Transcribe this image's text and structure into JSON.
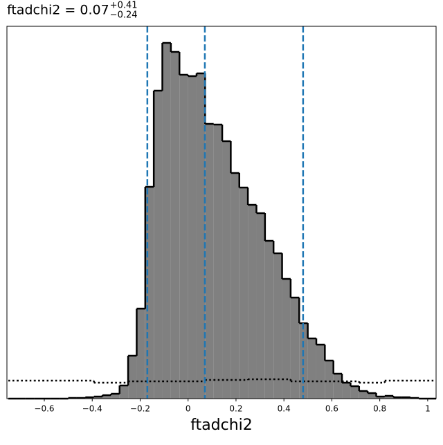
{
  "chart_data": {
    "type": "histogram",
    "title": "ftadchi2 = 0.07",
    "upper_error": "+0.41",
    "lower_error": "−0.24",
    "xlabel": "ftadchi2",
    "bins": [
      -0.75,
      -0.7143,
      -0.6786,
      -0.6429,
      -0.6072,
      -0.5715,
      -0.5358,
      -0.5001,
      -0.4644,
      -0.4287,
      -0.393,
      -0.3573,
      -0.3216,
      -0.2859,
      -0.2502,
      -0.2145,
      -0.1788,
      -0.1431,
      -0.1074,
      -0.0717,
      -0.036,
      -0.0003,
      0.0354,
      0.0711,
      0.1068,
      0.1425,
      0.1782,
      0.2139,
      0.2496,
      0.2853,
      0.321,
      0.3567,
      0.3924,
      0.4281,
      0.4638,
      0.4995,
      0.5352,
      0.5709,
      0.6066,
      0.6423,
      0.678,
      0.7137,
      0.7494,
      0.7851,
      0.8208,
      0.8565,
      0.8922,
      0.9279,
      0.9636,
      0.9993,
      1.035
    ],
    "values": [
      0,
      0,
      0,
      0,
      0,
      0,
      0,
      1,
      1,
      2,
      3,
      5,
      7,
      19,
      62,
      130,
      306,
      445,
      514,
      501,
      468,
      466,
      470,
      397,
      396,
      372,
      326,
      305,
      280,
      268,
      228,
      210,
      173,
      146,
      109,
      87,
      78,
      55,
      36,
      23,
      18,
      11,
      8,
      3,
      4,
      2,
      2,
      1,
      0,
      0
    ],
    "prior_values": [
      26,
      26,
      26,
      26,
      26,
      26,
      26,
      26,
      26,
      26,
      23,
      23,
      23,
      23,
      25,
      25,
      25,
      25,
      25,
      25,
      25,
      25,
      25,
      27,
      27,
      27,
      27,
      27,
      28,
      28,
      28,
      28,
      28,
      25,
      25,
      25,
      25,
      25,
      25,
      25,
      25,
      23,
      23,
      23,
      26,
      26,
      26,
      26,
      26,
      26
    ],
    "color": "#808080",
    "quantile_color": "#1f77b4",
    "quantiles": [
      -0.17,
      0.07,
      0.48
    ],
    "xlim": [
      -0.756,
      1.035
    ],
    "ylim": [
      0,
      538
    ],
    "xticks": [
      {
        "value": -0.6,
        "label": "−0.6"
      },
      {
        "value": -0.4,
        "label": "−0.4"
      },
      {
        "value": -0.2,
        "label": "−0.2"
      },
      0.0,
      0.2,
      0.4,
      0.6,
      0.8,
      1.0
    ]
  }
}
